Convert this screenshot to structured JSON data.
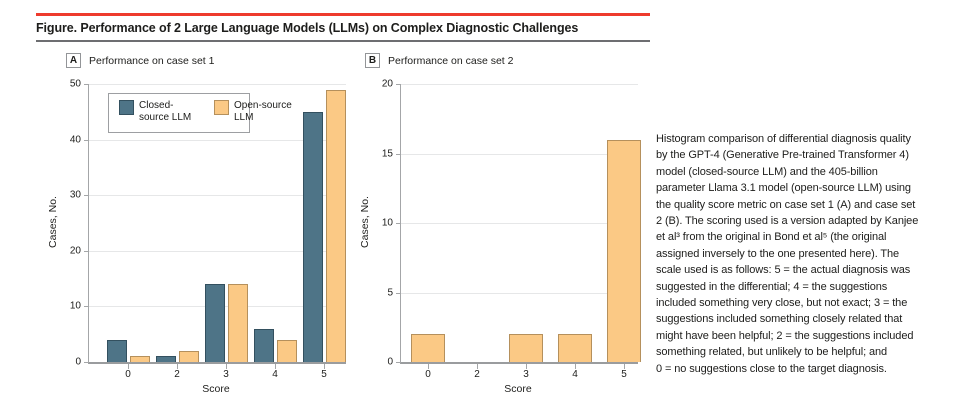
{
  "figure": {
    "title": "Figure. Performance of 2 Large Language Models (LLMs) on Complex Diagnostic Challenges"
  },
  "colors": {
    "rule_red": "#ee3b2d",
    "rule_gray": "#6d6e71",
    "closed_fill": "#4e7487",
    "closed_border": "#33505f",
    "open_fill": "#fbc985",
    "open_border": "#b5905c",
    "grid": "#e6e7e8",
    "axis": "#a4a6a8",
    "text": "#1d1d1b"
  },
  "chart_data": [
    {
      "type": "bar",
      "panel_letter": "A",
      "panel_title": "Performance on case set 1",
      "categories": [
        "0",
        "2",
        "3",
        "4",
        "5"
      ],
      "series": [
        {
          "name": "Closed-source LLM",
          "color_key": "closed",
          "values": [
            4,
            1,
            14,
            6,
            45
          ]
        },
        {
          "name": "Open-source LLM",
          "color_key": "open",
          "values": [
            1,
            2,
            14,
            4,
            49
          ]
        }
      ],
      "xlabel": "Score",
      "ylabel": "Cases, No.",
      "ylim": [
        0,
        50
      ],
      "yticks": [
        0,
        10,
        20,
        30,
        40,
        50
      ],
      "grid": true,
      "legend": {
        "show": true,
        "position": "top-left-inside"
      }
    },
    {
      "type": "bar",
      "panel_letter": "B",
      "panel_title": "Performance on case set 2",
      "categories": [
        "0",
        "2",
        "3",
        "4",
        "5"
      ],
      "series": [
        {
          "name": "Open-source LLM",
          "color_key": "open",
          "values": [
            2,
            0,
            2,
            2,
            16
          ]
        }
      ],
      "xlabel": "Score",
      "ylabel": "Cases, No.",
      "ylim": [
        0,
        20
      ],
      "yticks": [
        0,
        5,
        10,
        15,
        20
      ],
      "grid": true,
      "legend": {
        "show": false
      }
    }
  ],
  "caption_lines": [
    "Histogram comparison of differential diagnosis quality",
    "by the GPT-4 (Generative Pre-trained Transformer 4)",
    "model (closed-source LLM) and the 405-billion",
    "parameter Llama 3.1 model (open-source LLM) using",
    "the quality score metric on case set 1 (A) and case set",
    "2 (B). The scoring used is a version adapted by Kanjee",
    "et al³ from the original in Bond et al⁵ (the original",
    "assigned inversely to the one presented here). The",
    "scale used is as follows: 5 = the actual diagnosis was",
    "suggested in the differential; 4 = the suggestions",
    "included something very close, but not exact; 3 = the",
    "suggestions included something closely related that",
    "might have been helpful; 2 = the suggestions included",
    "something related, but unlikely to be helpful; and",
    "0 = no suggestions close to the target diagnosis."
  ]
}
